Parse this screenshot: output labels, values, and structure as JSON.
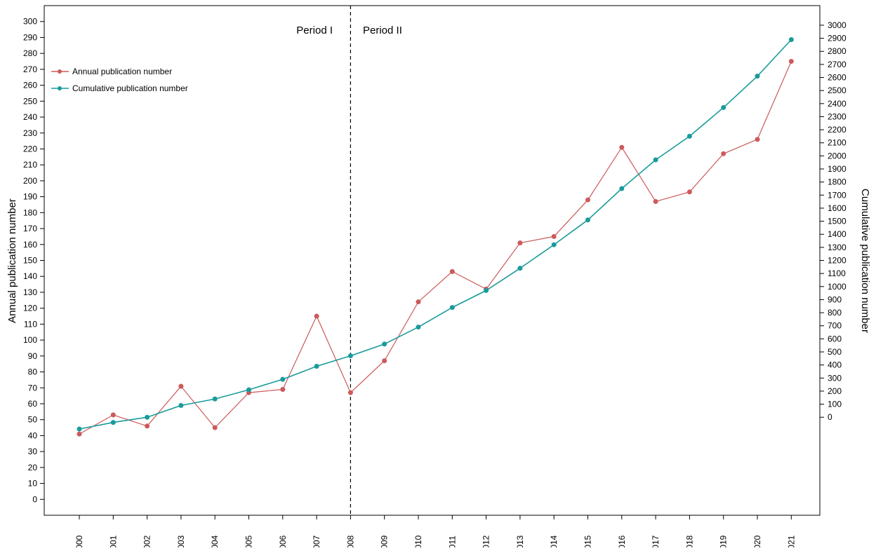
{
  "chart_data": {
    "type": "line",
    "x": [
      "2000",
      "2001",
      "2002",
      "2003",
      "2004",
      "2005",
      "2006",
      "2007",
      "2008",
      "2009",
      "2010",
      "2011",
      "2012",
      "2013",
      "2014",
      "2015",
      "2016",
      "2017",
      "2018",
      "2019",
      "2020",
      "2021"
    ],
    "series": [
      {
        "name": "Annual publication number",
        "axis": "left",
        "color": "#cc5a5a",
        "values": [
          41,
          53,
          46,
          71,
          45,
          67,
          69,
          115,
          67,
          87,
          124,
          143,
          132,
          161,
          165,
          188,
          221,
          187,
          193,
          217,
          226,
          275
        ]
      },
      {
        "name": "Cumulative publication number",
        "axis": "right",
        "color": "#1a9b9b",
        "values": [
          -90,
          -40,
          0,
          90,
          140,
          210,
          290,
          390,
          470,
          560,
          690,
          840,
          970,
          1140,
          1320,
          1510,
          1750,
          1970,
          2150,
          2370,
          2610,
          2890
        ]
      }
    ],
    "ylabel": "Annual publication number",
    "y2label": "Cumulative publication number",
    "ylim": [
      -10,
      310
    ],
    "y2lim": [
      -750,
      3150
    ],
    "yticks": [
      0,
      10,
      20,
      30,
      40,
      50,
      60,
      70,
      80,
      90,
      100,
      110,
      120,
      130,
      140,
      150,
      160,
      170,
      180,
      190,
      200,
      210,
      220,
      230,
      240,
      250,
      260,
      270,
      280,
      290,
      300
    ],
    "y2ticks": [
      0,
      100,
      200,
      300,
      400,
      500,
      600,
      700,
      800,
      900,
      1000,
      1100,
      1200,
      1300,
      1400,
      1500,
      1600,
      1700,
      1800,
      1900,
      2000,
      2100,
      2200,
      2300,
      2400,
      2500,
      2600,
      2700,
      2800,
      2900,
      3000
    ],
    "divider_x": "2008",
    "annotations": [
      "Period I",
      "Period II"
    ],
    "legend_position": "top-left",
    "grid": false
  }
}
